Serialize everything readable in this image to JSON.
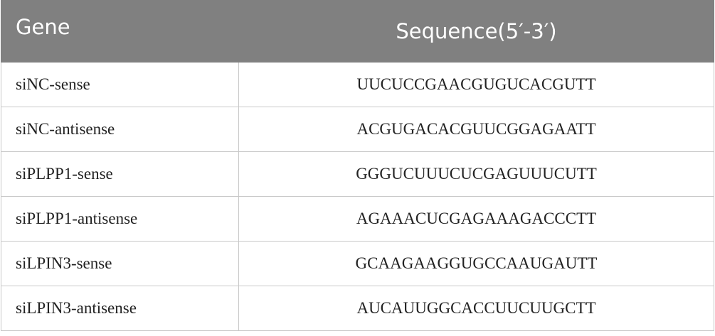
{
  "table": {
    "header": [
      "Gene",
      "Sequence(5′-3′)"
    ],
    "rows": [
      [
        "siNC-sense",
        "UUCUCCGAACGUGUCACGUTT"
      ],
      [
        "siNC-antisense",
        "ACGUGACACGUUCGGAGAATT"
      ],
      [
        "siPLPP1-sense",
        "GGGUCUUUCUCGAGUUUCUTT"
      ],
      [
        "siPLPP1-antisense",
        "AGAAACUCGAGAAAGACCCTT"
      ],
      [
        "siLPIN3-sense",
        "GCAAGAAGGUGCCAAUGAUTT"
      ],
      [
        "siLPIN3-antisense",
        "AUCAUUGGCACCUUCUUGCTT"
      ]
    ]
  }
}
